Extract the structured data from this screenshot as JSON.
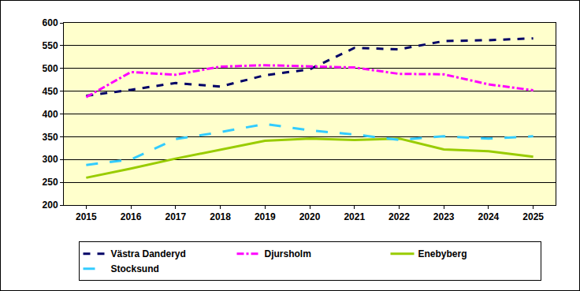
{
  "chart_data": {
    "type": "line",
    "categories": [
      "2015",
      "2016",
      "2017",
      "2018",
      "2019",
      "2020",
      "2021",
      "2022",
      "2023",
      "2024",
      "2025"
    ],
    "series": [
      {
        "name": "Västra Danderyd",
        "color": "#000066",
        "line_style": "dash",
        "values": [
          440,
          453,
          468,
          460,
          485,
          498,
          545,
          542,
          560,
          562,
          566
        ]
      },
      {
        "name": "Djursholm",
        "color": "#FF00FF",
        "line_style": "dashdot",
        "values": [
          437,
          492,
          486,
          504,
          507,
          505,
          502,
          488,
          487,
          465,
          452
        ]
      },
      {
        "name": "Enebyberg",
        "color": "#99CC00",
        "line_style": "solid",
        "values": [
          260,
          280,
          302,
          322,
          341,
          346,
          343,
          346,
          322,
          318,
          306
        ]
      },
      {
        "name": "Stocksund",
        "color": "#33CCFF",
        "line_style": "longdash",
        "values": [
          288,
          300,
          345,
          360,
          378,
          364,
          355,
          343,
          351,
          346,
          351
        ]
      }
    ],
    "ylim": [
      200,
      600
    ],
    "yticks": [
      200,
      250,
      300,
      350,
      400,
      450,
      500,
      550,
      600
    ],
    "grid": true,
    "legend": "bottom"
  }
}
